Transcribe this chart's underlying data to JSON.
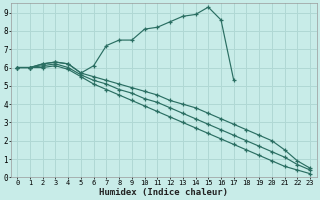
{
  "xlabel": "Humidex (Indice chaleur)",
  "bg_color": "#c8ece8",
  "grid_color": "#b0d8d4",
  "line_color": "#2a6e62",
  "xlim": [
    -0.5,
    23.5
  ],
  "ylim": [
    0,
    9.5
  ],
  "xticks": [
    0,
    1,
    2,
    3,
    4,
    5,
    6,
    7,
    8,
    9,
    10,
    11,
    12,
    13,
    14,
    15,
    16,
    17,
    18,
    19,
    20,
    21,
    22,
    23
  ],
  "yticks": [
    0,
    1,
    2,
    3,
    4,
    5,
    6,
    7,
    8,
    9
  ],
  "lines": [
    {
      "x": [
        0,
        1,
        2,
        3,
        4,
        5,
        6,
        7,
        8,
        9,
        10,
        11,
        12,
        13,
        14,
        15,
        16,
        17
      ],
      "y": [
        6.0,
        6.0,
        6.2,
        6.3,
        6.2,
        5.7,
        6.1,
        7.2,
        7.5,
        7.5,
        8.1,
        8.2,
        8.5,
        8.8,
        8.9,
        9.3,
        8.6,
        5.3
      ]
    },
    {
      "x": [
        0,
        1,
        2,
        3,
        4,
        5,
        6,
        7,
        8,
        9,
        10,
        11,
        12,
        13,
        14,
        15,
        16,
        17,
        18,
        19,
        20,
        21,
        22,
        23
      ],
      "y": [
        6.0,
        6.0,
        6.2,
        6.3,
        6.2,
        5.7,
        5.5,
        5.3,
        5.1,
        4.9,
        4.7,
        4.5,
        4.2,
        4.0,
        3.8,
        3.5,
        3.2,
        2.9,
        2.6,
        2.3,
        2.0,
        1.5,
        0.9,
        0.5
      ]
    },
    {
      "x": [
        0,
        1,
        2,
        3,
        4,
        5,
        6,
        7,
        8,
        9,
        10,
        11,
        12,
        13,
        14,
        15,
        16,
        17,
        18,
        19,
        20,
        21,
        22,
        23
      ],
      "y": [
        6.0,
        6.0,
        6.1,
        6.2,
        6.0,
        5.6,
        5.3,
        5.1,
        4.8,
        4.6,
        4.3,
        4.1,
        3.8,
        3.5,
        3.2,
        2.9,
        2.6,
        2.3,
        2.0,
        1.7,
        1.4,
        1.1,
        0.7,
        0.4
      ]
    },
    {
      "x": [
        0,
        1,
        2,
        3,
        4,
        5,
        6,
        7,
        8,
        9,
        10,
        11,
        12,
        13,
        14,
        15,
        16,
        17,
        18,
        19,
        20,
        21,
        22,
        23
      ],
      "y": [
        6.0,
        6.0,
        6.0,
        6.1,
        5.9,
        5.5,
        5.1,
        4.8,
        4.5,
        4.2,
        3.9,
        3.6,
        3.3,
        3.0,
        2.7,
        2.4,
        2.1,
        1.8,
        1.5,
        1.2,
        0.9,
        0.6,
        0.4,
        0.2
      ]
    }
  ]
}
